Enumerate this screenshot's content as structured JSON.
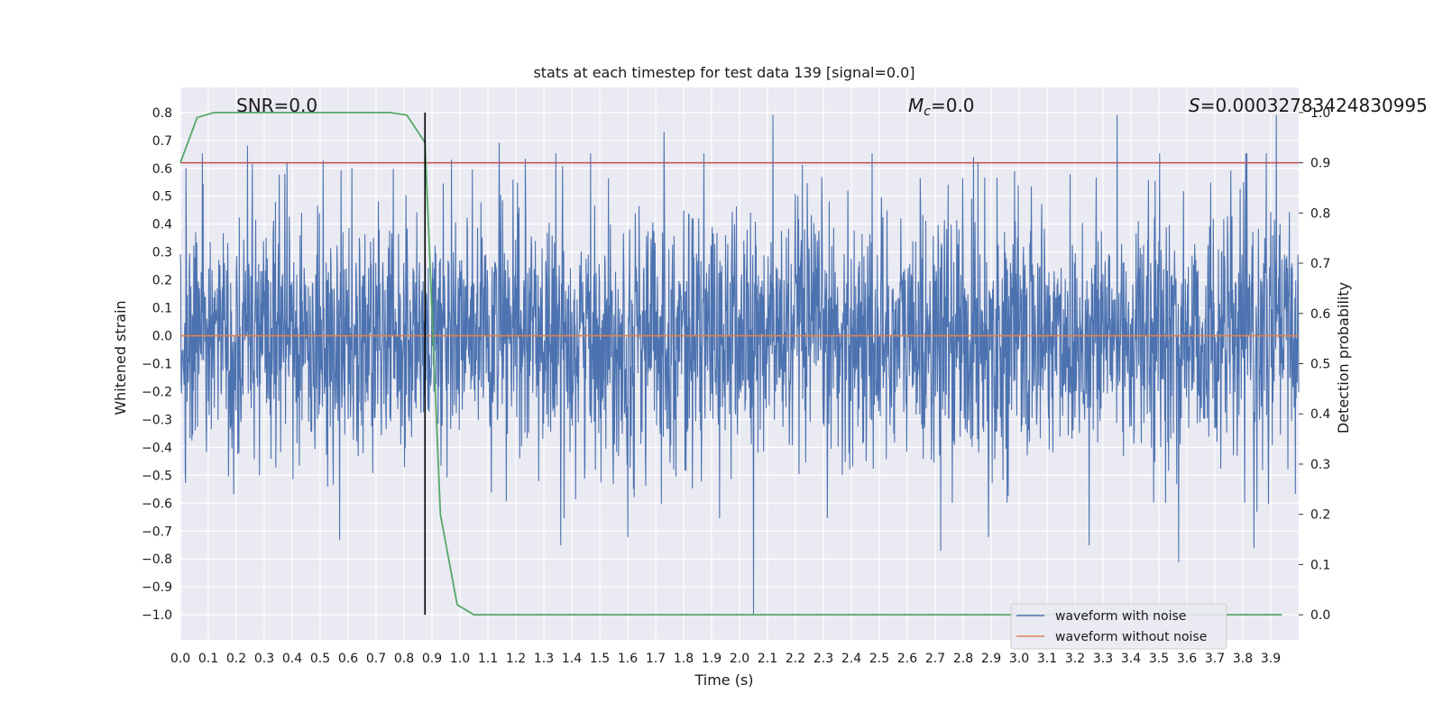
{
  "chart_data": {
    "type": "line",
    "title": "stats at each timestep for test data 139 [signal=0.0]",
    "xlabel": "Time (s)",
    "ylabel": "Whitened strain",
    "y2label": "Detection probability",
    "xlim": [
      0.0,
      4.0
    ],
    "ylim": [
      -1.09,
      0.89
    ],
    "y2lim": [
      -0.05,
      1.05
    ],
    "xticks": [
      "0.0",
      "0.1",
      "0.2",
      "0.3",
      "0.4",
      "0.5",
      "0.6",
      "0.7",
      "0.8",
      "0.9",
      "1.0",
      "1.1",
      "1.2",
      "1.3",
      "1.4",
      "1.5",
      "1.6",
      "1.7",
      "1.8",
      "1.9",
      "2.0",
      "2.1",
      "2.2",
      "2.3",
      "2.4",
      "2.5",
      "2.6",
      "2.7",
      "2.8",
      "2.9",
      "3.0",
      "3.1",
      "3.2",
      "3.3",
      "3.4",
      "3.5",
      "3.6",
      "3.7",
      "3.8",
      "3.9"
    ],
    "yticks": [
      "0.8",
      "0.7",
      "0.6",
      "0.5",
      "0.4",
      "0.3",
      "0.2",
      "0.1",
      "0.0",
      "−0.1",
      "−0.2",
      "−0.3",
      "−0.4",
      "−0.5",
      "−0.6",
      "−0.7",
      "−0.8",
      "−0.9",
      "−1.0"
    ],
    "y2ticks": [
      "1.0",
      "0.9",
      "0.8",
      "0.7",
      "0.6",
      "0.5",
      "0.4",
      "0.3",
      "0.2",
      "0.1",
      "0.0"
    ],
    "grid": true,
    "legend_position": "bottom-right",
    "annotations": {
      "snr": "SNR=0.0",
      "mc_symbol": "M",
      "mc_sub": "c",
      "mc_value": "=0.0",
      "s_symbol": "S",
      "s_value": "=0.00032783424830995"
    },
    "series": [
      {
        "name": "waveform with noise",
        "axis": "left",
        "color": "#4c72b0",
        "style": "dense noise, roughly ±0.45 typical amplitude",
        "noise_amplitude": 0.45,
        "peaks": [
          [
            0.02,
            0.6
          ],
          [
            0.24,
            0.68
          ],
          [
            0.97,
            0.63
          ],
          [
            1.14,
            0.69
          ],
          [
            1.73,
            0.73
          ],
          [
            2.12,
            0.79
          ],
          [
            2.89,
            0.77
          ],
          [
            3.35,
            0.79
          ],
          [
            3.92,
            0.79
          ]
        ],
        "troughs": [
          [
            0.57,
            -0.73
          ],
          [
            1.36,
            -0.75
          ],
          [
            1.6,
            -0.72
          ],
          [
            2.05,
            -1.0
          ],
          [
            2.72,
            -0.77
          ],
          [
            2.89,
            -0.72
          ],
          [
            3.25,
            -0.75
          ],
          [
            3.57,
            -0.81
          ],
          [
            3.84,
            -0.76
          ]
        ]
      },
      {
        "name": "waveform without noise",
        "axis": "left",
        "color": "#dd8452",
        "x": [
          0.0,
          4.0
        ],
        "y": [
          0.0,
          0.0
        ]
      },
      {
        "name": "",
        "axis": "right",
        "color": "#55a868",
        "x": [
          0.0,
          0.06,
          0.12,
          0.2,
          0.5,
          0.75,
          0.81,
          0.875,
          0.93,
          0.99,
          1.05,
          1.12,
          2.0,
          3.0,
          3.94
        ],
        "y": [
          0.9,
          0.99,
          1.0,
          1.0,
          1.0,
          1.0,
          0.995,
          0.94,
          0.2,
          0.02,
          0.0,
          0.0,
          0.0,
          0.0,
          0.0
        ]
      }
    ],
    "threshold": {
      "axis": "right",
      "value": 0.9,
      "color": "#c44e52"
    },
    "vline": {
      "x": 0.875,
      "color": "#000000"
    }
  }
}
